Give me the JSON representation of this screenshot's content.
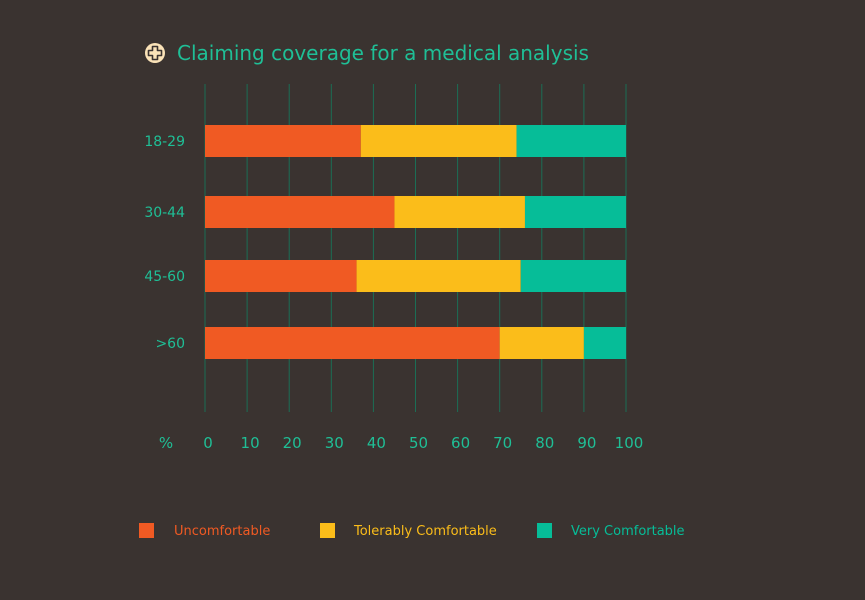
{
  "title": "Claiming coverage for a medical analysis",
  "icon": "medical-cross-icon",
  "colors": {
    "background": "#3a3330",
    "title": "#1fbf96",
    "axis_text": "#1fbf96",
    "grid": "#1b6e55",
    "icon_fill": "#fbe3b8",
    "icon_stroke": "#3a3330"
  },
  "chart_data": {
    "type": "bar",
    "orientation": "horizontal",
    "stacked": true,
    "title": "Claiming coverage for a medical analysis",
    "xlabel": "%",
    "ylabel": "",
    "xlim": [
      0,
      100
    ],
    "x_ticks": [
      0,
      10,
      20,
      30,
      40,
      50,
      60,
      70,
      80,
      90,
      100
    ],
    "categories": [
      "18-29",
      "30-44",
      "45-60",
      ">60"
    ],
    "grid": true,
    "legend_position": "bottom",
    "series": [
      {
        "name": "Uncomfortable",
        "color": "#f05a23",
        "values": [
          37,
          45,
          36,
          70
        ]
      },
      {
        "name": "Tolerably Comfortable",
        "color": "#fbbd1a",
        "values": [
          37,
          31,
          39,
          20
        ]
      },
      {
        "name": "Very Comfortable",
        "color": "#06bd98",
        "values": [
          26,
          24,
          25,
          10
        ]
      }
    ]
  }
}
